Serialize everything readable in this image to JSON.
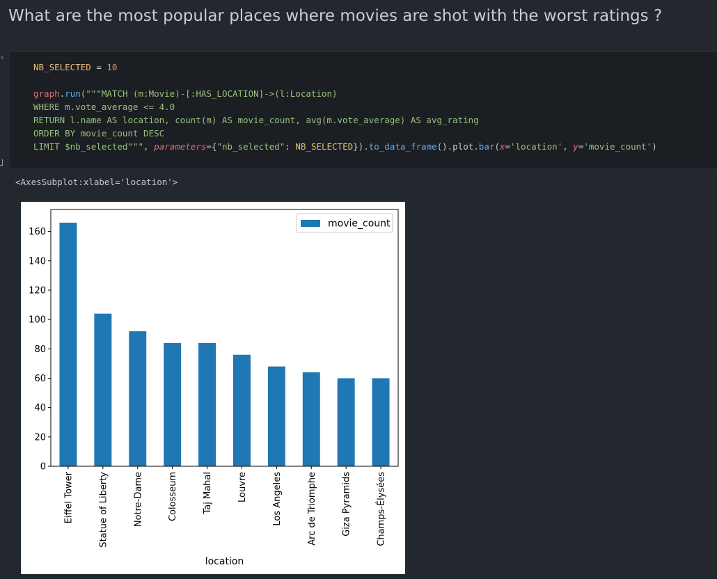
{
  "notebook": {
    "heading": "What are the most popular places where movies are shot with the worst ratings ?",
    "code_lines": [
      [
        {
          "t": "NB_SELECTED",
          "c": "k-var"
        },
        {
          "t": " = ",
          "c": "k-op"
        },
        {
          "t": "10",
          "c": "k-num"
        }
      ],
      [],
      [
        {
          "t": "graph",
          "c": "k-obj"
        },
        {
          "t": ".",
          "c": "k-op"
        },
        {
          "t": "run",
          "c": "k-fn"
        },
        {
          "t": "(\"\"\"MATCH (m:Movie)-[:HAS_LOCATION]->(l:Location)",
          "c": "k-str"
        }
      ],
      [
        {
          "t": "WHERE m.vote_average <= 4.0",
          "c": "k-str"
        }
      ],
      [
        {
          "t": "RETURN l.name AS location, count(m) AS movie_count, avg(m.vote_average) AS avg_rating",
          "c": "k-str"
        }
      ],
      [
        {
          "t": "ORDER BY movie_count DESC",
          "c": "k-str"
        }
      ],
      [
        {
          "t": "LIMIT $nb_selected\"\"\"",
          "c": "k-str"
        },
        {
          "t": ", ",
          "c": "k-op"
        },
        {
          "t": "parameters",
          "c": "k-param"
        },
        {
          "t": "=",
          "c": "k-op"
        },
        {
          "t": "{",
          "c": "k-op"
        },
        {
          "t": "\"nb_selected\"",
          "c": "k-str"
        },
        {
          "t": ": ",
          "c": "k-op"
        },
        {
          "t": "NB_SELECTED",
          "c": "k-var"
        },
        {
          "t": "})",
          "c": "k-op"
        },
        {
          "t": ".",
          "c": "k-op"
        },
        {
          "t": "to_data_frame",
          "c": "k-fn"
        },
        {
          "t": "()",
          "c": "k-op"
        },
        {
          "t": ".plot.",
          "c": "k-op"
        },
        {
          "t": "bar",
          "c": "k-fn"
        },
        {
          "t": "(",
          "c": "k-op"
        },
        {
          "t": "x",
          "c": "k-param"
        },
        {
          "t": "=",
          "c": "k-op"
        },
        {
          "t": "'location'",
          "c": "k-str"
        },
        {
          "t": ", ",
          "c": "k-op"
        },
        {
          "t": "y",
          "c": "k-param"
        },
        {
          "t": "=",
          "c": "k-op"
        },
        {
          "t": "'movie_count'",
          "c": "k-str"
        },
        {
          "t": ")",
          "c": "k-op"
        }
      ]
    ],
    "output_text": "<AxesSubplot:xlabel='location'>"
  },
  "chart_data": {
    "type": "bar",
    "categories": [
      "Eiffel Tower",
      "Statue of Liberty",
      "Notre-Dame",
      "Colosseum",
      "Taj Mahal",
      "Louvre",
      "Los Angeles",
      "Arc de Triomphe",
      "Giza Pyramids",
      "Champs-Élysées"
    ],
    "series": [
      {
        "name": "movie_count",
        "values": [
          166,
          104,
          92,
          84,
          84,
          76,
          68,
          64,
          60,
          60
        ]
      }
    ],
    "title": "",
    "xlabel": "location",
    "ylabel": "",
    "ylim": [
      0,
      175
    ],
    "yticks": [
      0,
      20,
      40,
      60,
      80,
      100,
      120,
      140,
      160
    ],
    "bar_color": "#1f77b4",
    "grid": false,
    "legend_position": "top-right"
  },
  "colors": {
    "background": "#23272e",
    "code_background": "#1b1e23"
  }
}
